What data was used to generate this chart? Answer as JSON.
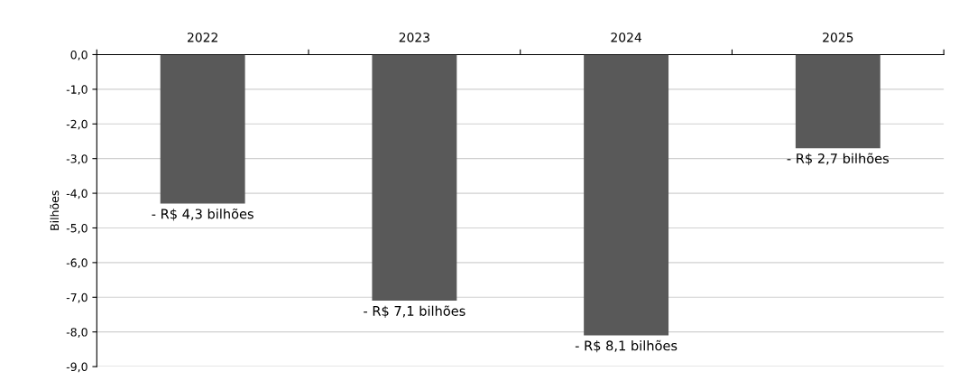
{
  "chart_data": {
    "type": "bar",
    "ylabel": "Bilhões",
    "categories": [
      "2022",
      "2023",
      "2024",
      "2025"
    ],
    "values": [
      -4.3,
      -7.1,
      -8.1,
      -2.7
    ],
    "value_labels": [
      "- R$ 4,3 bilhões",
      "- R$ 7,1 bilhões",
      "- R$ 8,1 bilhões",
      "- R$ 2,7 bilhões"
    ],
    "color": "#595959",
    "ylim": [
      -9,
      0
    ],
    "yticks": [
      {
        "value": 0,
        "label": "0,0"
      },
      {
        "value": -1,
        "label": "-1,0"
      },
      {
        "value": -2,
        "label": "-2,0"
      },
      {
        "value": -3,
        "label": "-3,0"
      },
      {
        "value": -4,
        "label": "-4,0"
      },
      {
        "value": -5,
        "label": "-5,0"
      },
      {
        "value": -6,
        "label": "-6,0"
      },
      {
        "value": -7,
        "label": "-7,0"
      },
      {
        "value": -8,
        "label": "-8,0"
      },
      {
        "value": -9,
        "label": "-9,0"
      }
    ],
    "grid": "y"
  }
}
